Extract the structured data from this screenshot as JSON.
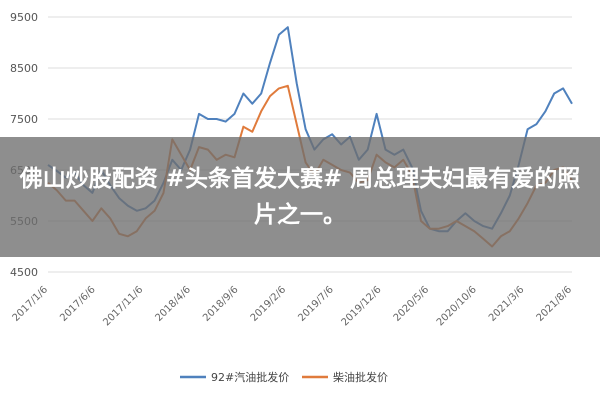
{
  "chart_data": {
    "type": "line",
    "title": "",
    "xlabel": "",
    "ylabel": "",
    "ylim": [
      4500,
      9500
    ],
    "yticks": [
      4500,
      5500,
      6500,
      7500,
      8500,
      9500
    ],
    "xtick_labels": [
      "2017/1/6",
      "2017/6/6",
      "2017/11/6",
      "2018/4/6",
      "2018/9/6",
      "2019/2/6",
      "2019/7/6",
      "2019/12/6",
      "2020/5/6",
      "2020/10/6",
      "2021/3/6",
      "2021/8/6"
    ],
    "grid": "horizontal",
    "legend_position": "bottom",
    "series": [
      {
        "name": "92#汽油批发价",
        "color": "#4f81bd",
        "values": [
          6600,
          6480,
          6350,
          6450,
          6200,
          6050,
          6500,
          6200,
          5950,
          5800,
          5700,
          5750,
          5900,
          6250,
          6700,
          6500,
          6900,
          7600,
          7500,
          7500,
          7450,
          7600,
          8000,
          7800,
          8000,
          8600,
          9150,
          9300,
          8200,
          7300,
          6900,
          7100,
          7200,
          7000,
          7150,
          6700,
          6900,
          7600,
          6900,
          6800,
          6900,
          6550,
          5700,
          5350,
          5300,
          5300,
          5500,
          5650,
          5500,
          5400,
          5350,
          5650,
          6000,
          6600,
          7300,
          7400,
          7650,
          8000,
          8100,
          7800
        ]
      },
      {
        "name": "柴油批发价",
        "color": "#e07b3c",
        "values": [
          6250,
          6100,
          5900,
          5900,
          5700,
          5500,
          5750,
          5550,
          5250,
          5200,
          5300,
          5550,
          5700,
          6050,
          7100,
          6800,
          6500,
          6950,
          6900,
          6700,
          6800,
          6750,
          7350,
          7250,
          7650,
          7950,
          8100,
          8150,
          7400,
          6650,
          6400,
          6700,
          6600,
          6500,
          6450,
          6250,
          6300,
          6800,
          6650,
          6550,
          6700,
          6400,
          5500,
          5350,
          5350,
          5400,
          5500,
          5400,
          5300,
          5150,
          5000,
          5200,
          5300,
          5550,
          5850,
          6200,
          6250,
          6500,
          6550,
          6300
        ]
      }
    ]
  },
  "overlay": {
    "text": "佛山炒股配资 #头条首发大赛# 周总理夫妇最有爱的照片之一。"
  }
}
